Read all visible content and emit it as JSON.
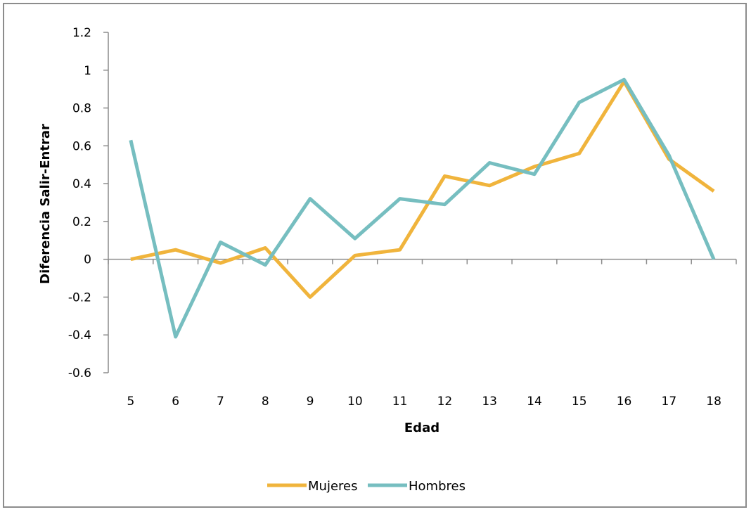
{
  "chart_data": {
    "type": "line",
    "title": "",
    "xlabel": "Edad",
    "ylabel": "Diferencia Salir-Entrar",
    "categories": [
      "5",
      "6",
      "7",
      "8",
      "9",
      "10",
      "11",
      "12",
      "13",
      "14",
      "15",
      "16",
      "17",
      "18"
    ],
    "ylim": [
      -0.6,
      1.2
    ],
    "yticks": [
      "1.2",
      "1",
      "0.8",
      "0.6",
      "0.4",
      "0.2",
      "0",
      "-0.2",
      "-0.4",
      "-0.6"
    ],
    "ytick_values": [
      1.2,
      1.0,
      0.8,
      0.6,
      0.4,
      0.2,
      0.0,
      -0.2,
      -0.4,
      -0.6
    ],
    "grid": false,
    "legend_position": "bottom",
    "series": [
      {
        "name": "Mujeres",
        "color": "#F0B43C",
        "values": [
          0.0,
          0.05,
          -0.02,
          0.06,
          -0.2,
          0.02,
          0.05,
          0.44,
          0.39,
          0.49,
          0.56,
          0.94,
          0.53,
          0.36
        ]
      },
      {
        "name": "Hombres",
        "color": "#76BEC0",
        "values": [
          0.63,
          -0.41,
          0.09,
          -0.03,
          0.32,
          0.11,
          0.32,
          0.29,
          0.51,
          0.45,
          0.83,
          0.95,
          0.55,
          0.0
        ]
      }
    ]
  }
}
